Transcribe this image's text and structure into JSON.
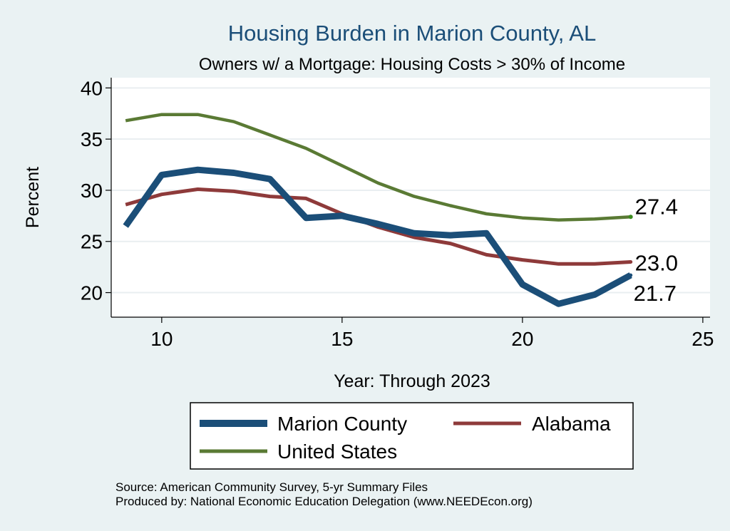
{
  "chart_data": {
    "type": "line",
    "title": "Housing Burden in Marion County, AL",
    "subtitle": "Owners w/ a Mortgage: Housing Costs > 30% of Income",
    "xlabel": "Year: Through 2023",
    "ylabel": "Percent",
    "xlim": [
      8.6,
      25.2
    ],
    "ylim": [
      17.6,
      41.0
    ],
    "xticks": [
      10,
      15,
      20,
      25
    ],
    "yticks": [
      20,
      25,
      30,
      35,
      40
    ],
    "grid": true,
    "legend_position": "bottom",
    "x": [
      9,
      10,
      11,
      12,
      13,
      14,
      15,
      16,
      17,
      18,
      19,
      20,
      21,
      22,
      23
    ],
    "series": [
      {
        "name": "Marion County",
        "color": "#1b4e78",
        "values": [
          26.5,
          31.5,
          32.0,
          31.7,
          31.1,
          27.3,
          27.5,
          26.7,
          25.8,
          25.6,
          25.8,
          20.8,
          18.9,
          19.8,
          21.7
        ],
        "end_label": "21.7"
      },
      {
        "name": "Alabama",
        "color": "#8e3a3a",
        "values": [
          28.6,
          29.6,
          30.1,
          29.9,
          29.4,
          29.2,
          27.7,
          26.4,
          25.4,
          24.8,
          23.7,
          23.2,
          22.8,
          22.8,
          23.0
        ],
        "end_label": "23.0"
      },
      {
        "name": "United States",
        "color": "#5a7a34",
        "values": [
          36.8,
          37.4,
          37.4,
          36.7,
          35.4,
          34.1,
          32.4,
          30.7,
          29.4,
          28.5,
          27.7,
          27.3,
          27.1,
          27.2,
          27.4
        ],
        "end_label": "27.4"
      }
    ],
    "source_lines": [
      "Source: American Community Survey, 5-yr Summary Files",
      "Produced by: National Economic Education Delegation (www.NEEDEcon.org)"
    ]
  },
  "colors": {
    "background": "#eaf2f3",
    "plot_background": "#ffffff",
    "title": "#1b4e78",
    "grid": "#e9eef1",
    "text": "#000000"
  }
}
